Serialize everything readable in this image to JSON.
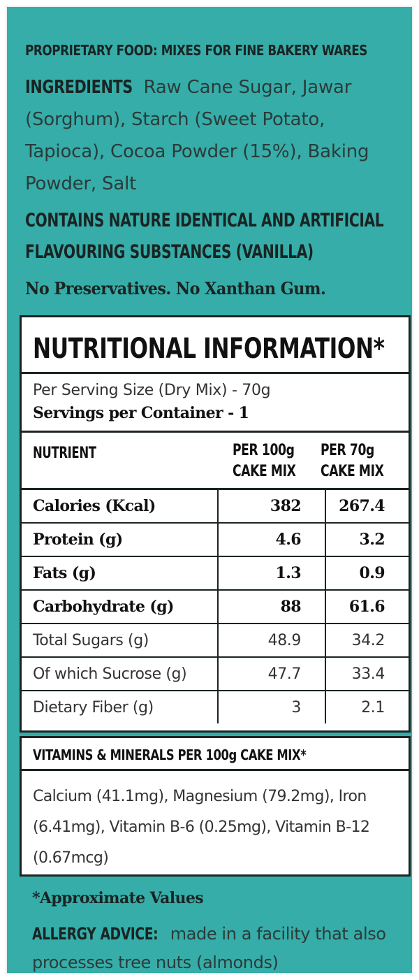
{
  "header": {
    "product_type": "PROPRIETARY FOOD: MIXES FOR FINE BAKERY WARES",
    "ingredients_label": "INGREDIENTS",
    "ingredients_text": "Raw Cane Sugar, Jawar (Sorghum), Starch (Sweet Potato, Tapioca), Cocoa Powder (15%), Baking Powder, Salt",
    "contains_line1": "CONTAINS NATURE IDENTICAL AND ARTIFICIAL",
    "contains_line2": "FLAVOURING SUBSTANCES (VANILLA)",
    "no_preservatives": "No Preservatives. No Xanthan Gum."
  },
  "nutrition": {
    "title": "NUTRITIONAL INFORMATION*",
    "serving_size": "Per Serving Size (Dry Mix) - 70g",
    "servings_per_container": "Servings per Container - 1",
    "col_nutrient": "NUTRIENT",
    "col_per100_line1": "PER 100g",
    "col_per100_line2": "CAKE MIX",
    "col_per70_line1": "PER 70g",
    "col_per70_line2": "CAKE MIX",
    "rows": [
      {
        "name": "Calories (Kcal)",
        "per100": "382",
        "per70": "267.4"
      },
      {
        "name": "Protein (g)",
        "per100": "4.6",
        "per70": "3.2"
      },
      {
        "name": "Fats (g)",
        "per100": "1.3",
        "per70": "0.9"
      },
      {
        "name": "Carbohydrate (g)",
        "per100": "88",
        "per70": "61.6"
      },
      {
        "name": "Total Sugars (g)",
        "per100": "48.9",
        "per70": "34.2"
      },
      {
        "name": "Of which Sucrose (g)",
        "per100": "47.7",
        "per70": "33.4"
      },
      {
        "name": "Dietary Fiber (g)",
        "per100": "3",
        "per70": "2.1"
      }
    ]
  },
  "vitamins": {
    "title": "VITAMINS & MINERALS PER 100g CAKE MIX*",
    "text": "Calcium (41.1mg), Magnesium (79.2mg), Iron (6.41mg), Vitamin B-6 (0.25mg), Vitamin B-12 (0.67mcg)"
  },
  "footer": {
    "approx": "*Approximate Values",
    "allergy_label": "ALLERGY ADVICE:",
    "allergy_text": "made in a facility that also processes tree nuts (almonds)"
  },
  "colors": {
    "background": "#36ada8",
    "ink": "#1a2423",
    "box": "#ffffff"
  }
}
